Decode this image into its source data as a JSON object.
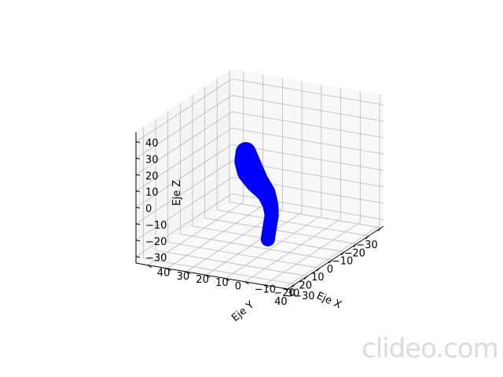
{
  "chart_data": {
    "type": "scatter",
    "projection": "3d",
    "xlabel": "Eje X",
    "ylabel": "Eje Y",
    "zlabel": "Eje Z",
    "xticks": [
      "−30",
      "−20",
      "−10",
      "0",
      "10",
      "20",
      "30",
      "40"
    ],
    "yticks": [
      "−30",
      "−20",
      "−10",
      "0",
      "10",
      "20",
      "30",
      "40"
    ],
    "zticks": [
      "−30",
      "−20",
      "−10",
      "0",
      "10",
      "20",
      "30",
      "40"
    ],
    "xlim": [
      -32,
      46
    ],
    "ylim": [
      -32,
      46
    ],
    "zlim": [
      -34,
      46
    ],
    "grid": true,
    "marker_color": "#0000ff",
    "series": [
      {
        "description_points": [
          {
            "x": 2,
            "y": 6,
            "z": -33
          },
          {
            "x": 2,
            "y": 5,
            "z": -25
          },
          {
            "x": 2,
            "y": 4,
            "z": -18
          },
          {
            "x": 3,
            "y": 4,
            "z": -11
          },
          {
            "x": 5,
            "y": 5,
            "z": -3
          },
          {
            "x": 8,
            "y": 8,
            "z": 5
          },
          {
            "x": 10,
            "y": 10,
            "z": 12
          },
          {
            "x": 11,
            "y": 11,
            "z": 18
          },
          {
            "x": 12,
            "y": 11,
            "z": 24
          }
        ]
      }
    ]
  },
  "watermark": "clideo.com"
}
